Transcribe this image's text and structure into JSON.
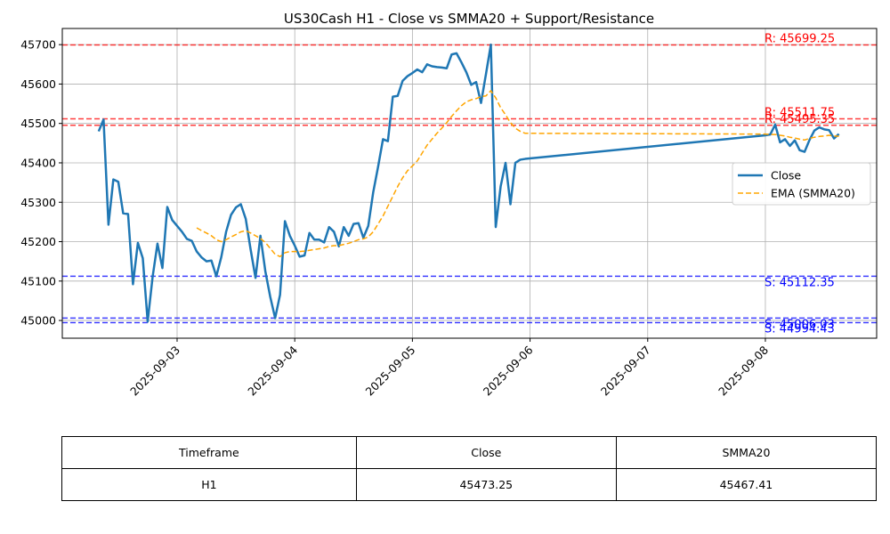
{
  "chart_data": {
    "type": "line",
    "title": "US30Cash H1 - Close vs SMMA20 + Support/Resistance",
    "x": [
      "2025-09-02T08:00",
      "2025-09-02T09:00",
      "2025-09-02T10:00",
      "2025-09-02T11:00",
      "2025-09-02T12:00",
      "2025-09-02T13:00",
      "2025-09-02T14:00",
      "2025-09-02T15:00",
      "2025-09-02T16:00",
      "2025-09-02T17:00",
      "2025-09-02T18:00",
      "2025-09-02T19:00",
      "2025-09-02T20:00",
      "2025-09-02T21:00",
      "2025-09-02T22:00",
      "2025-09-02T23:00",
      "2025-09-03T00:00",
      "2025-09-03T01:00",
      "2025-09-03T02:00",
      "2025-09-03T03:00",
      "2025-09-03T04:00",
      "2025-09-03T05:00",
      "2025-09-03T06:00",
      "2025-09-03T07:00",
      "2025-09-03T08:00",
      "2025-09-03T09:00",
      "2025-09-03T10:00",
      "2025-09-03T11:00",
      "2025-09-03T12:00",
      "2025-09-03T13:00",
      "2025-09-03T14:00",
      "2025-09-03T15:00",
      "2025-09-03T16:00",
      "2025-09-03T17:00",
      "2025-09-03T18:00",
      "2025-09-03T19:00",
      "2025-09-03T20:00",
      "2025-09-03T21:00",
      "2025-09-03T22:00",
      "2025-09-03T23:00",
      "2025-09-04T00:00",
      "2025-09-04T01:00",
      "2025-09-04T02:00",
      "2025-09-04T03:00",
      "2025-09-04T04:00",
      "2025-09-04T05:00",
      "2025-09-04T06:00",
      "2025-09-04T07:00",
      "2025-09-04T08:00",
      "2025-09-04T09:00",
      "2025-09-04T10:00",
      "2025-09-04T11:00",
      "2025-09-04T12:00",
      "2025-09-04T13:00",
      "2025-09-04T14:00",
      "2025-09-04T15:00",
      "2025-09-04T16:00",
      "2025-09-04T17:00",
      "2025-09-04T18:00",
      "2025-09-04T19:00",
      "2025-09-04T20:00",
      "2025-09-04T21:00",
      "2025-09-04T22:00",
      "2025-09-04T23:00",
      "2025-09-05T00:00",
      "2025-09-05T01:00",
      "2025-09-05T02:00",
      "2025-09-05T03:00",
      "2025-09-05T04:00",
      "2025-09-05T05:00",
      "2025-09-05T06:00",
      "2025-09-05T07:00",
      "2025-09-05T08:00",
      "2025-09-05T09:00",
      "2025-09-05T10:00",
      "2025-09-05T11:00",
      "2025-09-05T12:00",
      "2025-09-05T13:00",
      "2025-09-05T14:00",
      "2025-09-05T15:00",
      "2025-09-05T16:00",
      "2025-09-05T17:00",
      "2025-09-05T18:00",
      "2025-09-05T19:00",
      "2025-09-05T20:00",
      "2025-09-05T21:00",
      "2025-09-05T22:00",
      "2025-09-05T23:00",
      "2025-09-08T00:00",
      "2025-09-08T01:00",
      "2025-09-08T02:00",
      "2025-09-08T03:00",
      "2025-09-08T04:00",
      "2025-09-08T05:00",
      "2025-09-08T06:00",
      "2025-09-08T07:00",
      "2025-09-08T08:00",
      "2025-09-08T09:00",
      "2025-09-08T10:00",
      "2025-09-08T11:00",
      "2025-09-08T12:00",
      "2025-09-08T13:00",
      "2025-09-08T14:00",
      "2025-09-08T15:00"
    ],
    "series": [
      {
        "name": "Close",
        "color": "#1f77b4",
        "dash": "solid",
        "values": [
          45480,
          45510,
          45243,
          45358,
          45352,
          45272,
          45270,
          45092,
          45197,
          45158,
          44997,
          45110,
          45195,
          45133,
          45288,
          45255,
          45240,
          45225,
          45207,
          45202,
          45175,
          45160,
          45150,
          45152,
          45112,
          45160,
          45225,
          45268,
          45287,
          45295,
          45258,
          45180,
          45108,
          45215,
          45125,
          45060,
          45006,
          45065,
          45252,
          45215,
          45190,
          45162,
          45165,
          45222,
          45205,
          45205,
          45198,
          45237,
          45225,
          45188,
          45237,
          45215,
          45245,
          45247,
          45210,
          45240,
          45325,
          45390,
          45460,
          45455,
          45568,
          45570,
          45608,
          45620,
          45628,
          45637,
          45630,
          45650,
          45645,
          45643,
          45642,
          45640,
          45675,
          45678,
          45655,
          45630,
          45598,
          45605,
          45552,
          45625,
          45700,
          45237,
          45340,
          45400,
          45295,
          45400,
          45408,
          45410,
          45470,
          45472,
          45497,
          45452,
          45460,
          45443,
          45457,
          45432,
          45428,
          45458,
          45482,
          45490,
          45485,
          45483,
          45462,
          45473.25
        ]
      },
      {
        "name": "EMA (SMMA20)",
        "color": "#ffa500",
        "dash": "dashed",
        "values": [
          null,
          null,
          null,
          null,
          null,
          null,
          null,
          null,
          null,
          null,
          null,
          null,
          null,
          null,
          null,
          null,
          null,
          null,
          null,
          null,
          45235,
          45228,
          45222,
          45215,
          45205,
          45200,
          45205,
          45212,
          45218,
          45225,
          45228,
          45222,
          45215,
          45208,
          45198,
          45183,
          45168,
          45162,
          45172,
          45175,
          45175,
          45175,
          45176,
          45178,
          45180,
          45182,
          45184,
          45188,
          45190,
          45190,
          45193,
          45196,
          45200,
          45205,
          45207,
          45212,
          45225,
          45245,
          45265,
          45290,
          45315,
          45340,
          45362,
          45380,
          45392,
          45405,
          45425,
          45445,
          45460,
          45475,
          45488,
          45502,
          45518,
          45532,
          45545,
          45555,
          45560,
          45563,
          45568,
          45570,
          45583,
          45565,
          45540,
          45522,
          45502,
          45488,
          45480,
          45475,
          45473,
          45472,
          45472,
          45470,
          45468,
          45465,
          45463,
          45460,
          45458,
          45462,
          45465,
          45467,
          45468,
          45470,
          45468,
          45467.41
        ]
      }
    ],
    "levels": [
      {
        "label": "R: 45699.25",
        "value": 45699.25,
        "color": "#ff0000"
      },
      {
        "label": "R: 45511.75",
        "value": 45511.75,
        "color": "#ff0000"
      },
      {
        "label": "R: 45495.35",
        "value": 45495.35,
        "color": "#ff0000"
      },
      {
        "label": "S: 45112.35",
        "value": 45112.35,
        "color": "#0000ff"
      },
      {
        "label": "S: 45006.03",
        "value": 45006.03,
        "color": "#0000ff"
      },
      {
        "label": "S: 44994.43",
        "value": 44994.43,
        "color": "#0000ff"
      }
    ],
    "xlim": [
      "2025-09-02T00:35",
      "2025-09-08T22:42"
    ],
    "xticks": [
      "2025-09-03",
      "2025-09-04",
      "2025-09-05",
      "2025-09-06",
      "2025-09-07",
      "2025-09-08"
    ],
    "ylim": [
      44955,
      45741
    ],
    "yticks": [
      45000,
      45100,
      45200,
      45300,
      45400,
      45500,
      45600,
      45700
    ],
    "grid": true,
    "legend": "right"
  },
  "table": {
    "header": [
      "Timeframe",
      "Close",
      "SMMA20"
    ],
    "rows": [
      [
        "H1",
        "45473.25",
        "45467.41"
      ]
    ]
  }
}
